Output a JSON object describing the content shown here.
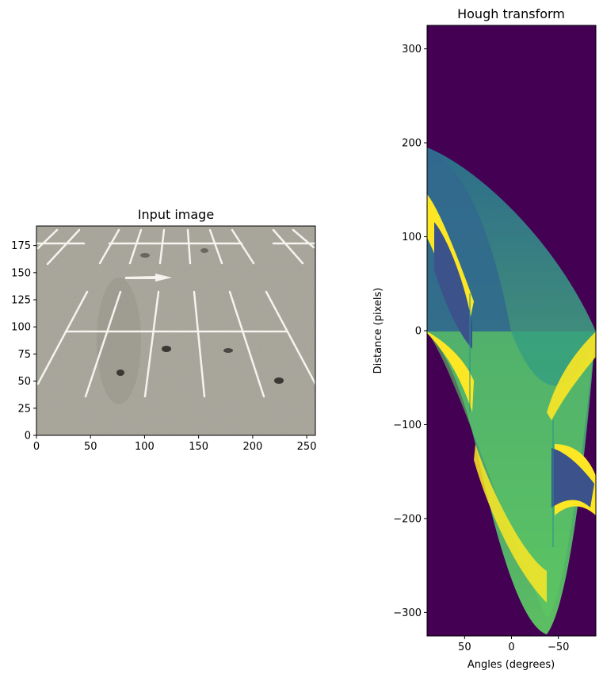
{
  "chart_data": [
    {
      "type": "heatmap",
      "title": "Input image",
      "xlabel": "",
      "ylabel": "",
      "xlim": [
        0,
        258
      ],
      "ylim": [
        193,
        0
      ],
      "xticks": [
        0,
        50,
        100,
        150,
        200,
        250
      ],
      "yticks": [
        0,
        25,
        50,
        75,
        100,
        125,
        150,
        175
      ],
      "content": "grayscale photo of a parking lot with white painted stall lines and a white arrow",
      "colors": {
        "asphalt": "#a6a398",
        "lines": "#f4f3ee"
      }
    },
    {
      "type": "heatmap",
      "title": "Hough transform",
      "xlabel": "Angles (degrees)",
      "ylabel": "Distance (pixels)",
      "xlim": [
        90,
        -90
      ],
      "ylim": [
        325,
        -325
      ],
      "xticks": [
        50,
        0,
        -50
      ],
      "yticks": [
        -300,
        -200,
        -100,
        0,
        100,
        200,
        300
      ],
      "colormap": "viridis",
      "colors": {
        "background": "#440154",
        "low": "#3b528b",
        "mid": "#21918c",
        "high": "#5ec962",
        "peak": "#fde725"
      }
    }
  ]
}
